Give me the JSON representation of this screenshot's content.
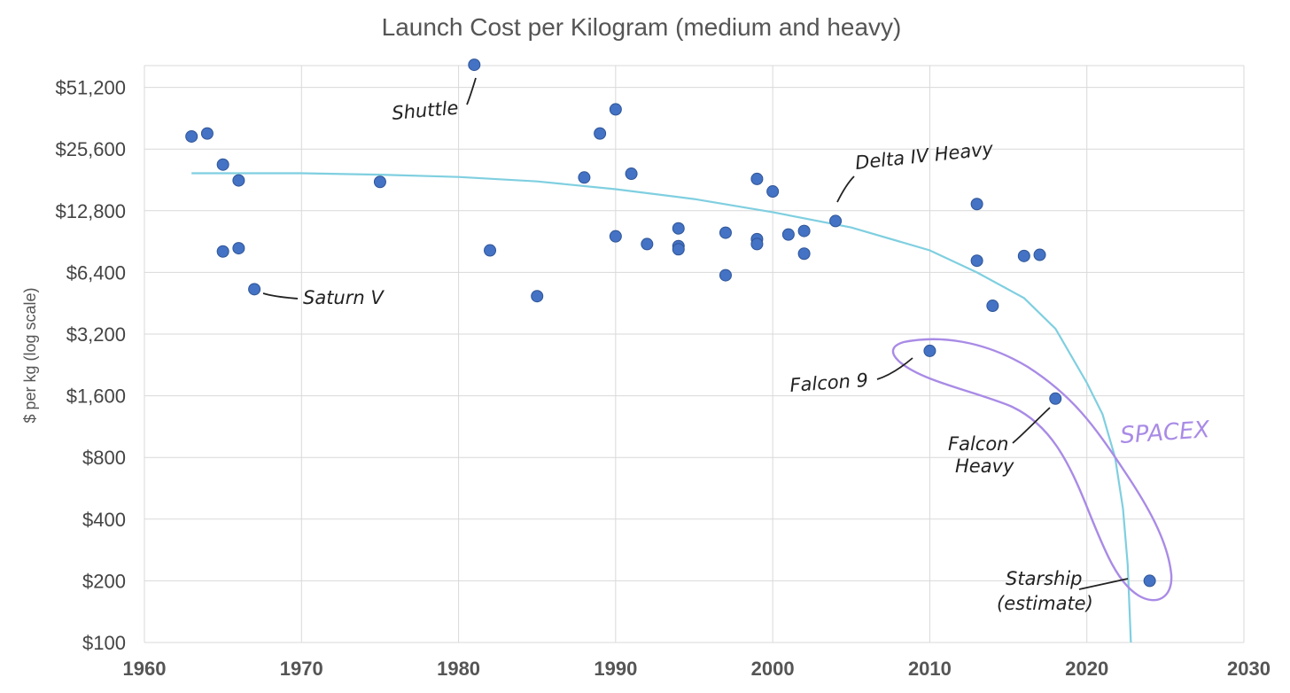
{
  "chart_data": {
    "type": "scatter",
    "title": "Launch Cost per Kilogram (medium and heavy)",
    "xlabel": "",
    "ylabel": "$ per kg (log scale)",
    "xlim": [
      1960,
      2030
    ],
    "ylim": [
      100,
      70000
    ],
    "y_scale": "log2",
    "grid": true,
    "x_ticks": [
      1960,
      1970,
      1980,
      1990,
      2000,
      2010,
      2020,
      2030
    ],
    "x_tick_labels": [
      "1960",
      "1970",
      "1980",
      "1990",
      "2000",
      "2010",
      "2020",
      "2030"
    ],
    "y_ticks": [
      100,
      200,
      400,
      800,
      1600,
      3200,
      6400,
      12800,
      25600,
      51200
    ],
    "y_tick_labels": [
      "$100",
      "$200",
      "$400",
      "$800",
      "$1,600",
      "$3,200",
      "$6,400",
      "$12,800",
      "$25,600",
      "$51,200"
    ],
    "points": [
      {
        "x": 1963,
        "y": 29500
      },
      {
        "x": 1964,
        "y": 30500
      },
      {
        "x": 1965,
        "y": 21500
      },
      {
        "x": 1966,
        "y": 18000
      },
      {
        "x": 1965,
        "y": 8100
      },
      {
        "x": 1966,
        "y": 8400
      },
      {
        "x": 1967,
        "y": 5300
      },
      {
        "x": 1975,
        "y": 17700
      },
      {
        "x": 1981,
        "y": 66000
      },
      {
        "x": 1982,
        "y": 8200
      },
      {
        "x": 1985,
        "y": 4900
      },
      {
        "x": 1988,
        "y": 18600
      },
      {
        "x": 1989,
        "y": 30500
      },
      {
        "x": 1990,
        "y": 40000
      },
      {
        "x": 1991,
        "y": 19400
      },
      {
        "x": 1990,
        "y": 9600
      },
      {
        "x": 1992,
        "y": 8800
      },
      {
        "x": 1994,
        "y": 10500
      },
      {
        "x": 1994,
        "y": 8600
      },
      {
        "x": 1994,
        "y": 8300
      },
      {
        "x": 1997,
        "y": 10000
      },
      {
        "x": 1997,
        "y": 6200
      },
      {
        "x": 1999,
        "y": 18300
      },
      {
        "x": 2000,
        "y": 15900
      },
      {
        "x": 1999,
        "y": 9300
      },
      {
        "x": 1999,
        "y": 8800
      },
      {
        "x": 2001,
        "y": 9800
      },
      {
        "x": 2002,
        "y": 10200
      },
      {
        "x": 2002,
        "y": 7900
      },
      {
        "x": 2004,
        "y": 11400
      },
      {
        "x": 2013,
        "y": 13800
      },
      {
        "x": 2013,
        "y": 7300
      },
      {
        "x": 2014,
        "y": 4400
      },
      {
        "x": 2016,
        "y": 7700
      },
      {
        "x": 2017,
        "y": 7800
      },
      {
        "x": 2010,
        "y": 2650
      },
      {
        "x": 2018,
        "y": 1550
      },
      {
        "x": 2024,
        "y": 200
      }
    ],
    "trendline": [
      {
        "x": 1963,
        "y": 19500
      },
      {
        "x": 1970,
        "y": 19500
      },
      {
        "x": 1975,
        "y": 19200
      },
      {
        "x": 1980,
        "y": 18700
      },
      {
        "x": 1985,
        "y": 17800
      },
      {
        "x": 1990,
        "y": 16300
      },
      {
        "x": 1995,
        "y": 14600
      },
      {
        "x": 2000,
        "y": 12600
      },
      {
        "x": 2005,
        "y": 10600
      },
      {
        "x": 2010,
        "y": 8200
      },
      {
        "x": 2013,
        "y": 6400
      },
      {
        "x": 2016,
        "y": 4800
      },
      {
        "x": 2018,
        "y": 3400
      },
      {
        "x": 2020,
        "y": 1850
      },
      {
        "x": 2021,
        "y": 1300
      },
      {
        "x": 2021.8,
        "y": 800
      },
      {
        "x": 2022.3,
        "y": 450
      },
      {
        "x": 2022.6,
        "y": 240
      },
      {
        "x": 2022.8,
        "y": 100
      }
    ],
    "colors": {
      "points": "#4472c4",
      "trendline": "#7fcfe0",
      "grid": "#d9d9d9",
      "spacex_outline": "#a98be6"
    },
    "annotations": [
      {
        "text": "Shuttle",
        "x": 1981,
        "y": 66000
      },
      {
        "text": "Saturn V",
        "x": 1967,
        "y": 5300
      },
      {
        "text": "Delta IV Heavy",
        "x": 2004,
        "y": 11400
      },
      {
        "text": "Falcon 9",
        "x": 2010,
        "y": 2650
      },
      {
        "text": "Falcon",
        "x": 2018,
        "y": 1550
      },
      {
        "text": "Heavy",
        "x": 2018,
        "y": 1550
      },
      {
        "text": "Starship",
        "x": 2024,
        "y": 200
      },
      {
        "text": "(estimate)",
        "x": 2024,
        "y": 200
      },
      {
        "text": "SPACEX",
        "x": 2023,
        "y": 900
      }
    ]
  }
}
